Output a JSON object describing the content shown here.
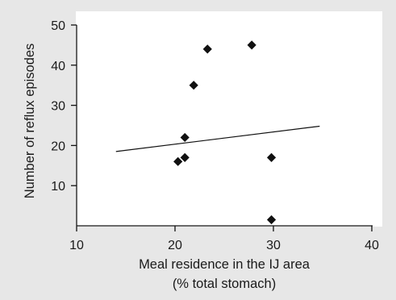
{
  "chart_data": {
    "type": "scatter",
    "title": "",
    "xlabel_lines": [
      "Meal residence in the IJ area",
      "(% total stomach)"
    ],
    "ylabel": "Number of reflux episodes",
    "xlim": [
      10,
      40
    ],
    "ylim": [
      0,
      50
    ],
    "xticks": [
      10,
      20,
      30,
      40
    ],
    "yticks": [
      10,
      20,
      30,
      40,
      50
    ],
    "grid": false,
    "legend": "none",
    "marker": "diamond",
    "marker_color": "#111111",
    "points": [
      {
        "x": 20.3,
        "y": 16
      },
      {
        "x": 21.0,
        "y": 17
      },
      {
        "x": 21.0,
        "y": 22
      },
      {
        "x": 21.9,
        "y": 35
      },
      {
        "x": 23.3,
        "y": 44
      },
      {
        "x": 27.8,
        "y": 45
      },
      {
        "x": 29.8,
        "y": 17
      },
      {
        "x": 29.8,
        "y": 1.5
      }
    ],
    "trend_line": {
      "x": [
        14,
        34.7
      ],
      "y": [
        18.5,
        24.8
      ]
    }
  }
}
